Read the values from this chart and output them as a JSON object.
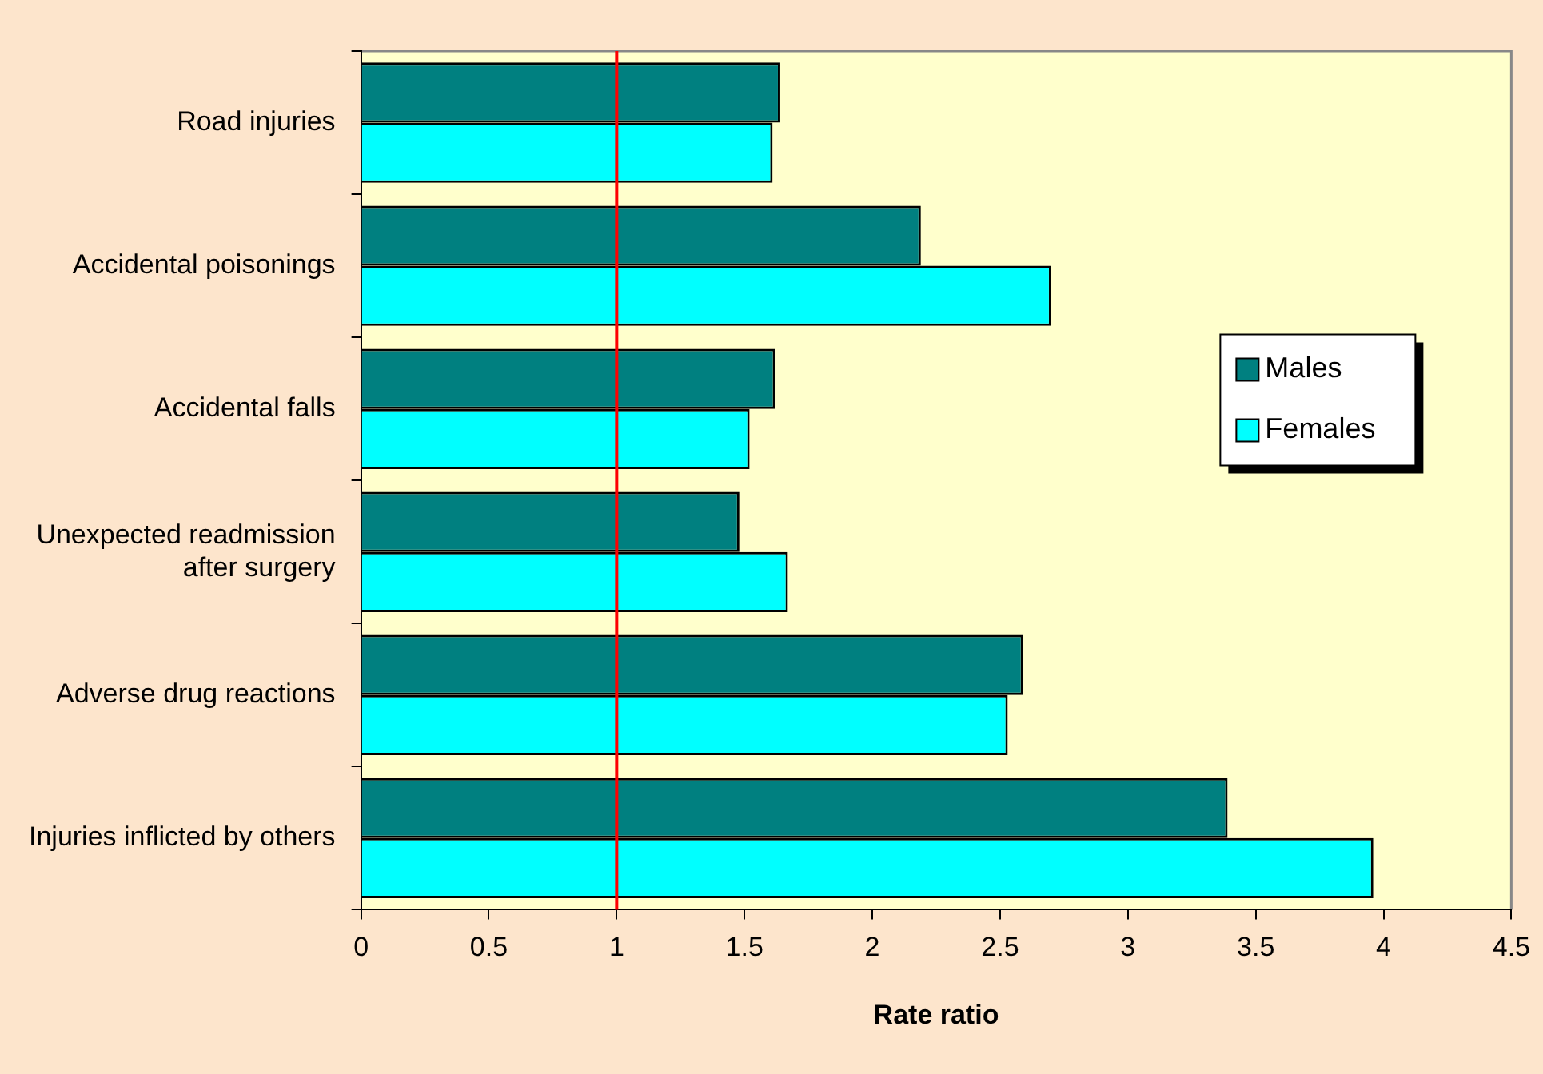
{
  "chart_data": {
    "type": "bar",
    "orientation": "horizontal",
    "xlabel": "Rate ratio",
    "categories": [
      "Road injuries",
      "Accidental poisonings",
      "Accidental falls",
      "Unexpected readmission after surgery",
      "Adverse drug reactions",
      "Injuries inflicted by others"
    ],
    "series": [
      {
        "name": "Males",
        "color": "#008080",
        "values": [
          1.64,
          2.19,
          1.62,
          1.48,
          2.59,
          3.39
        ]
      },
      {
        "name": "Females",
        "color": "#00ffff",
        "values": [
          1.61,
          2.7,
          1.52,
          1.67,
          2.53,
          3.96
        ]
      }
    ],
    "xlim": [
      0,
      4.5
    ],
    "xticks": [
      0,
      0.5,
      1,
      1.5,
      2,
      2.5,
      3,
      3.5,
      4,
      4.5
    ],
    "ref_lines": [
      {
        "axis": "x",
        "value": 1,
        "color": "#ff0000"
      }
    ],
    "grid": false,
    "legend": "right"
  }
}
